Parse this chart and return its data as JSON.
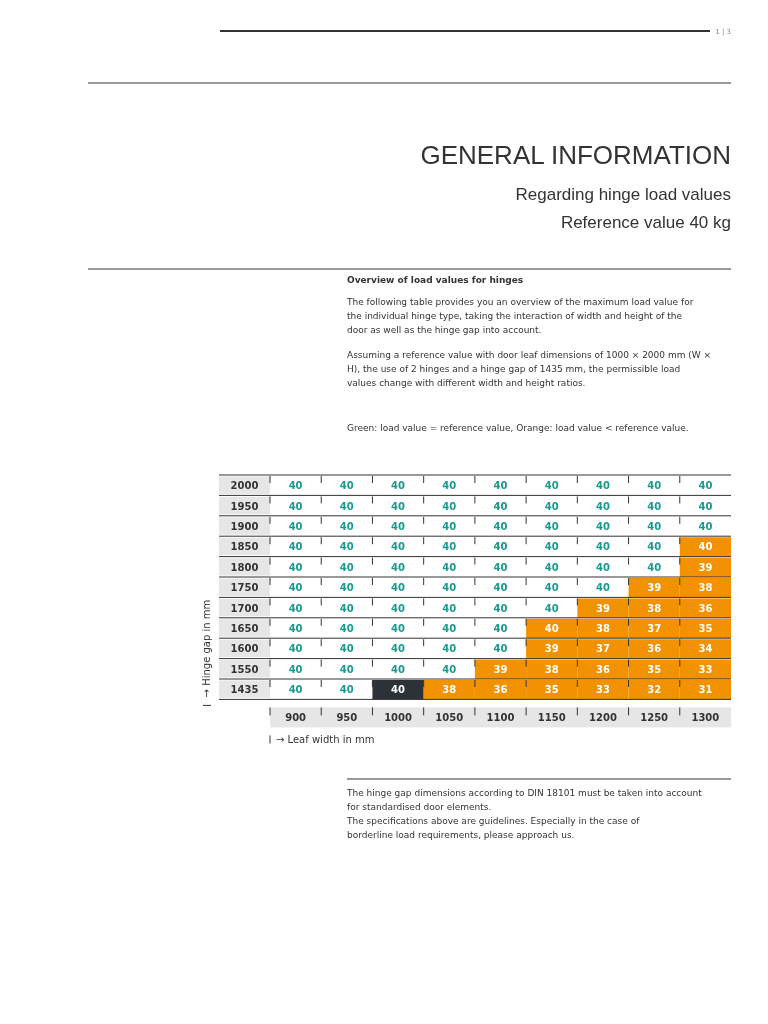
{
  "chart_data": {
    "type": "heatmap",
    "title": "GENERAL INFORMATION",
    "subtitle": "Regarding hinge load values\nReference value 40 kg",
    "xlabel": "→ Leaf width in mm",
    "ylabel": "→ Hinge gap in mm",
    "categories": [
      "900",
      "950",
      "1000",
      "1050",
      "1100",
      "1150",
      "1200",
      "1250",
      "1300"
    ],
    "y_categories": [
      "2000",
      "1950",
      "1900",
      "1850",
      "1800",
      "1750",
      "1700",
      "1650",
      "1600",
      "1550",
      "1435"
    ],
    "cells": [
      [
        40,
        40,
        40,
        40,
        40,
        40,
        40,
        40,
        40
      ],
      [
        40,
        40,
        40,
        40,
        40,
        40,
        40,
        40,
        40
      ],
      [
        40,
        40,
        40,
        40,
        40,
        40,
        40,
        40,
        40
      ],
      [
        40,
        40,
        40,
        40,
        40,
        40,
        40,
        40,
        40
      ],
      [
        40,
        40,
        40,
        40,
        40,
        40,
        40,
        40,
        39
      ],
      [
        40,
        40,
        40,
        40,
        40,
        40,
        40,
        39,
        38
      ],
      [
        40,
        40,
        40,
        40,
        40,
        40,
        39,
        38,
        36
      ],
      [
        40,
        40,
        40,
        40,
        40,
        40,
        38,
        37,
        35
      ],
      [
        40,
        40,
        40,
        40,
        40,
        39,
        37,
        36,
        34
      ],
      [
        40,
        40,
        40,
        40,
        39,
        38,
        36,
        35,
        33
      ],
      [
        40,
        40,
        40,
        38,
        36,
        35,
        33,
        32,
        31
      ]
    ],
    "colors": [
      [
        "#ffffff",
        "#ffffff",
        "#ffffff",
        "#ffffff",
        "#ffffff",
        "#ffffff",
        "#ffffff",
        "#ffffff",
        "#ffffff"
      ],
      [
        "#ffffff",
        "#ffffff",
        "#ffffff",
        "#ffffff",
        "#ffffff",
        "#ffffff",
        "#ffffff",
        "#ffffff",
        "#ffffff"
      ],
      [
        "#ffffff",
        "#ffffff",
        "#ffffff",
        "#ffffff",
        "#ffffff",
        "#ffffff",
        "#ffffff",
        "#ffffff",
        "#ffffff"
      ],
      [
        "#ffffff",
        "#ffffff",
        "#ffffff",
        "#ffffff",
        "#ffffff",
        "#ffffff",
        "#ffffff",
        "#ffffff",
        "#f39200"
      ],
      [
        "#ffffff",
        "#ffffff",
        "#ffffff",
        "#ffffff",
        "#ffffff",
        "#ffffff",
        "#ffffff",
        "#ffffff",
        "#f39200"
      ],
      [
        "#ffffff",
        "#ffffff",
        "#ffffff",
        "#ffffff",
        "#ffffff",
        "#ffffff",
        "#ffffff",
        "#f39200",
        "#f39200"
      ],
      [
        "#ffffff",
        "#ffffff",
        "#ffffff",
        "#ffffff",
        "#ffffff",
        "#ffffff",
        "#f39200",
        "#f39200",
        "#f39200"
      ],
      [
        "#ffffff",
        "#ffffff",
        "#ffffff",
        "#ffffff",
        "#ffffff",
        "#f39200",
        "#f39200",
        "#f39200",
        "#f39200"
      ],
      [
        "#ffffff",
        "#ffffff",
        "#ffffff",
        "#ffffff",
        "#ffffff",
        "#f39200",
        "#f39200",
        "#f39200",
        "#f39200"
      ],
      [
        "#ffffff",
        "#ffffff",
        "#ffffff",
        "#ffffff",
        "#f39200",
        "#f39200",
        "#f39200",
        "#f39200",
        "#f39200"
      ],
      [
        "#ffffff",
        "#ffffff",
        "#2d3238",
        "#f39200",
        "#f39200",
        "#f39200",
        "#f39200",
        "#f39200",
        "#f39200"
      ]
    ],
    "data_labels": true,
    "annotations": [
      "1 | 3",
      "Overview of load values for hinges",
      "The following table provides you an overview of the maximum load value for the individual hinge type, taking the interaction of width and height of the door as well as the hinge gap into account.",
      "Assuming a reference value with door leaf dimensions of 1000 × 2000 mm (W × H), the use of 2 hinges and a hinge gap of 1435 mm, the permissible load values change with different width and height ratios.",
      "Green: load value = reference value, Orange: load value < reference value.",
      "The hinge gap dimensions according to DIN 18101 must be taken into account for standardised door elements.",
      "The specifications above are guidelines. Especially in the case of borderline load requirements, please approach us."
    ]
  }
}
